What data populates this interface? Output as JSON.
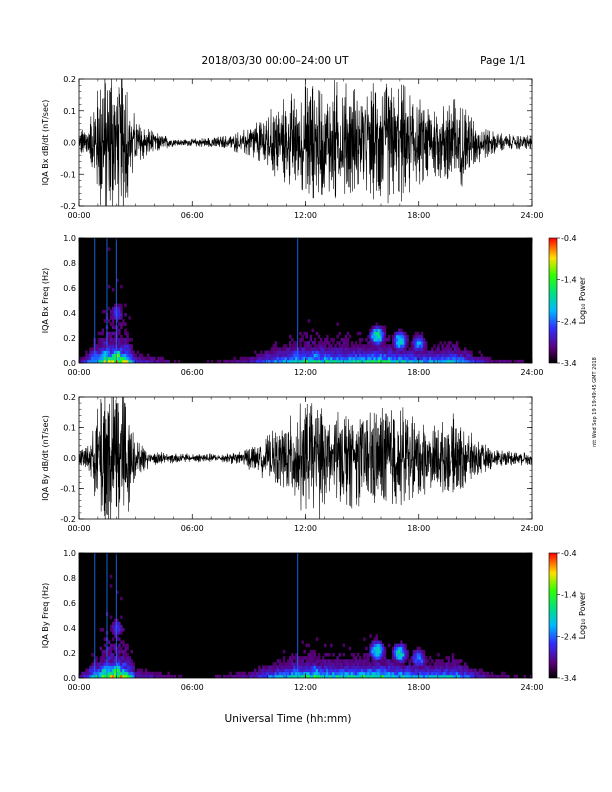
{
  "header": {
    "title": "2018/03/30   00:00–24:00 UT",
    "page": "Page 1/1"
  },
  "footer": {
    "xlabel": "Universal Time (hh:mm)"
  },
  "side_note": "ntt Wed Sep 19 19:49:45 GMT 2018",
  "chart_data": [
    {
      "type": "line",
      "ylabel": "IQA Bx dB/dt (nT/sec)",
      "xlim": [
        "00:00",
        "24:00"
      ],
      "ylim": [
        -0.2,
        0.2
      ],
      "xticks": [
        "00:00",
        "06:00",
        "12:00",
        "18:00",
        "24:00"
      ],
      "yticks": [
        "-0.2",
        "-0.1",
        "0.0",
        "0.1",
        "0.2"
      ],
      "envelope": {
        "hours": [
          0,
          0.5,
          1.0,
          1.3,
          1.6,
          2.0,
          2.5,
          3.0,
          4.0,
          5.0,
          6.0,
          7.0,
          8.0,
          9.0,
          10.0,
          11.0,
          12.0,
          13.0,
          14.0,
          15.0,
          16.0,
          17.0,
          18.0,
          19.0,
          20.0,
          21.0,
          22.0,
          23.0,
          24.0
        ],
        "amplitude": [
          0.03,
          0.05,
          0.15,
          0.22,
          0.22,
          0.22,
          0.2,
          0.06,
          0.03,
          0.01,
          0.01,
          0.015,
          0.02,
          0.04,
          0.08,
          0.12,
          0.16,
          0.17,
          0.16,
          0.14,
          0.16,
          0.16,
          0.12,
          0.1,
          0.14,
          0.06,
          0.03,
          0.02,
          0.02
        ]
      }
    },
    {
      "type": "heatmap",
      "ylabel": "IQA Bx Freq (Hz)",
      "xlim": [
        "00:00",
        "24:00"
      ],
      "ylim": [
        0.0,
        1.0
      ],
      "xticks": [
        "00:00",
        "06:00",
        "12:00",
        "18:00",
        "24:00"
      ],
      "yticks": [
        "0.0",
        "0.2",
        "0.4",
        "0.6",
        "0.8",
        "1.0"
      ],
      "colorbar": {
        "label": "Log₁₀ Power",
        "ticks": [
          "-0.4",
          "-1.4",
          "-2.4",
          "-3.4"
        ],
        "range": [
          -3.4,
          -0.4
        ]
      },
      "features": [
        {
          "hour": 0.8,
          "f": 0.05,
          "v": -2.4
        },
        {
          "hour": 1.4,
          "f": 0.05,
          "v": -1.8
        },
        {
          "hour": 2.0,
          "f": 0.05,
          "v": -1.4
        },
        {
          "hour": 2.0,
          "f": 0.4,
          "v": -2.6
        },
        {
          "hour": 11.5,
          "f": 0.05,
          "v": -2.4
        },
        {
          "hour": 12.5,
          "f": 0.05,
          "v": -2.2
        },
        {
          "hour": 15.8,
          "f": 0.22,
          "v": -1.6
        },
        {
          "hour": 17.0,
          "f": 0.18,
          "v": -1.8
        },
        {
          "hour": 18.0,
          "f": 0.16,
          "v": -2.2
        }
      ]
    },
    {
      "type": "line",
      "ylabel": "IQA By dB/dt (nT/sec)",
      "xlim": [
        "00:00",
        "24:00"
      ],
      "ylim": [
        -0.2,
        0.2
      ],
      "xticks": [
        "00:00",
        "06:00",
        "12:00",
        "18:00",
        "24:00"
      ],
      "yticks": [
        "-0.2",
        "-0.1",
        "0.0",
        "0.1",
        "0.2"
      ],
      "envelope": {
        "hours": [
          0,
          0.5,
          1.0,
          1.3,
          1.6,
          2.0,
          2.5,
          3.0,
          4.0,
          5.0,
          6.0,
          7.0,
          8.0,
          9.0,
          10.0,
          11.0,
          12.0,
          13.0,
          14.0,
          15.0,
          16.0,
          17.0,
          18.0,
          19.0,
          20.0,
          21.0,
          22.0,
          23.0,
          24.0
        ],
        "amplitude": [
          0.02,
          0.04,
          0.14,
          0.22,
          0.22,
          0.22,
          0.2,
          0.05,
          0.02,
          0.015,
          0.012,
          0.012,
          0.015,
          0.03,
          0.06,
          0.1,
          0.16,
          0.16,
          0.14,
          0.13,
          0.15,
          0.15,
          0.11,
          0.09,
          0.12,
          0.05,
          0.03,
          0.02,
          0.02
        ]
      }
    },
    {
      "type": "heatmap",
      "ylabel": "IQA By Freq (Hz)",
      "xlim": [
        "00:00",
        "24:00"
      ],
      "ylim": [
        0.0,
        1.0
      ],
      "xticks": [
        "00:00",
        "06:00",
        "12:00",
        "18:00",
        "24:00"
      ],
      "yticks": [
        "0.0",
        "0.2",
        "0.4",
        "0.6",
        "0.8",
        "1.0"
      ],
      "colorbar": {
        "label": "Log₁₀ Power",
        "ticks": [
          "-0.4",
          "-1.4",
          "-2.4",
          "-3.4"
        ],
        "range": [
          -3.4,
          -0.4
        ]
      },
      "features": [
        {
          "hour": 0.8,
          "f": 0.05,
          "v": -2.4
        },
        {
          "hour": 1.4,
          "f": 0.05,
          "v": -1.8
        },
        {
          "hour": 2.0,
          "f": 0.05,
          "v": -1.4
        },
        {
          "hour": 2.0,
          "f": 0.4,
          "v": -2.6
        },
        {
          "hour": 11.5,
          "f": 0.05,
          "v": -2.4
        },
        {
          "hour": 12.5,
          "f": 0.05,
          "v": -2.2
        },
        {
          "hour": 15.8,
          "f": 0.22,
          "v": -1.6
        },
        {
          "hour": 17.0,
          "f": 0.2,
          "v": -1.8
        },
        {
          "hour": 18.0,
          "f": 0.16,
          "v": -2.2
        }
      ]
    }
  ]
}
